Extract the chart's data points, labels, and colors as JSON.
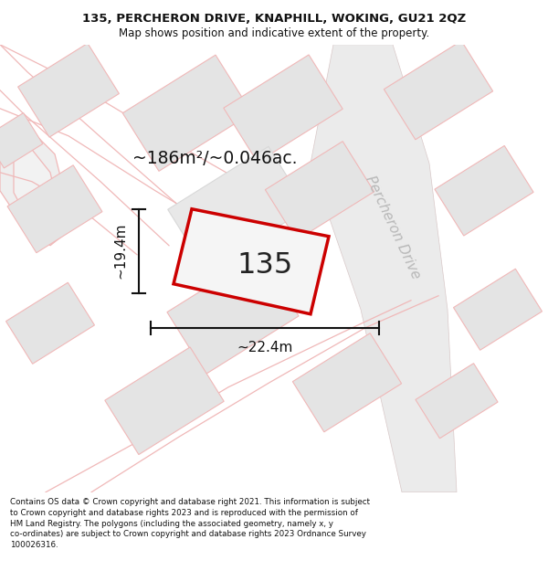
{
  "title_line1": "135, PERCHERON DRIVE, KNAPHILL, WOKING, GU21 2QZ",
  "title_line2": "Map shows position and indicative extent of the property.",
  "area_label": "~186m²/~0.046ac.",
  "width_label": "~22.4m",
  "height_label": "~19.4m",
  "plot_number": "135",
  "road_label": "Percheron Drive",
  "footer_text": "Contains OS data © Crown copyright and database right 2021. This information is subject to Crown copyright and database rights 2023 and is reproduced with the permission of HM Land Registry. The polygons (including the associated geometry, namely x, y co-ordinates) are subject to Crown copyright and database rights 2023 Ordnance Survey 100026316.",
  "bg_color": "#f2f2f2",
  "plot_fill": "#f0f0f0",
  "plot_edge": "#cc0000",
  "dim_line_color": "#111111",
  "road_text_color": "#b0b0b0",
  "light_line_color": "#f0b8b8",
  "block_fill": "#e4e4e4",
  "block_edge": "#cccccc",
  "white": "#ffffff"
}
